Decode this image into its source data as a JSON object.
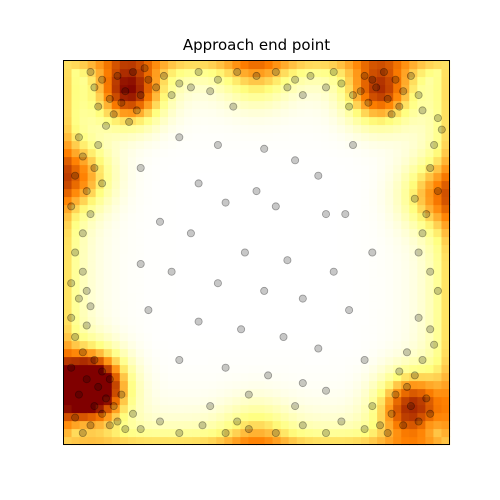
{
  "chart_data": {
    "type": "scatter",
    "title": "Approach end point",
    "xlabel": "",
    "ylabel": "",
    "xlim": [
      0,
      1
    ],
    "ylim": [
      0,
      1
    ],
    "grid": false,
    "axes_ticks": false,
    "colormap": "afmhot",
    "point_color": "#000000",
    "point_alpha": 0.22,
    "series": [
      {
        "values": [
          [
            0.08,
            0.93
          ],
          [
            0.1,
            0.95
          ],
          [
            0.12,
            0.9
          ],
          [
            0.14,
            0.96
          ],
          [
            0.09,
            0.88
          ],
          [
            0.16,
            0.92
          ],
          [
            0.18,
            0.97
          ],
          [
            0.13,
            0.86
          ],
          [
            0.2,
            0.91
          ],
          [
            0.22,
            0.95
          ],
          [
            0.11,
            0.83
          ],
          [
            0.15,
            0.89
          ],
          [
            0.24,
            0.93
          ],
          [
            0.07,
            0.97
          ],
          [
            0.19,
            0.87
          ],
          [
            0.26,
            0.96
          ],
          [
            0.28,
            0.91
          ],
          [
            0.17,
            0.84
          ],
          [
            0.21,
            0.98
          ],
          [
            0.3,
            0.94
          ],
          [
            0.72,
            0.94
          ],
          [
            0.75,
            0.91
          ],
          [
            0.78,
            0.96
          ],
          [
            0.81,
            0.93
          ],
          [
            0.84,
            0.9
          ],
          [
            0.86,
            0.95
          ],
          [
            0.88,
            0.92
          ],
          [
            0.7,
            0.97
          ],
          [
            0.74,
            0.88
          ],
          [
            0.79,
            0.89
          ],
          [
            0.83,
            0.97
          ],
          [
            0.9,
            0.96
          ],
          [
            0.92,
            0.91
          ],
          [
            0.68,
            0.93
          ],
          [
            0.77,
            0.92
          ],
          [
            0.87,
            0.88
          ],
          [
            0.93,
            0.87
          ],
          [
            0.64,
            0.96
          ],
          [
            0.8,
            0.95
          ],
          [
            0.85,
            0.86
          ],
          [
            0.03,
            0.28
          ],
          [
            0.05,
            0.24
          ],
          [
            0.02,
            0.2
          ],
          [
            0.06,
            0.17
          ],
          [
            0.04,
            0.13
          ],
          [
            0.08,
            0.1
          ],
          [
            0.03,
            0.07
          ],
          [
            0.07,
            0.05
          ],
          [
            0.1,
            0.08
          ],
          [
            0.05,
            0.03
          ],
          [
            0.12,
            0.05
          ],
          [
            0.09,
            0.15
          ],
          [
            0.02,
            0.33
          ],
          [
            0.06,
            0.31
          ],
          [
            0.11,
            0.12
          ],
          [
            0.14,
            0.06
          ],
          [
            0.04,
            0.38
          ],
          [
            0.08,
            0.22
          ],
          [
            0.13,
            0.1
          ],
          [
            0.16,
            0.04
          ],
          [
            0.03,
            0.5
          ],
          [
            0.05,
            0.45
          ],
          [
            0.02,
            0.42
          ],
          [
            0.07,
            0.36
          ],
          [
            0.1,
            0.19
          ],
          [
            0.15,
            0.13
          ],
          [
            0.18,
            0.08
          ],
          [
            0.2,
            0.04
          ],
          [
            0.12,
            0.17
          ],
          [
            0.06,
            0.4
          ],
          [
            0.85,
            0.08
          ],
          [
            0.88,
            0.05
          ],
          [
            0.9,
            0.1
          ],
          [
            0.92,
            0.06
          ],
          [
            0.86,
            0.13
          ],
          [
            0.94,
            0.12
          ],
          [
            0.89,
            0.15
          ],
          [
            0.82,
            0.05
          ],
          [
            0.95,
            0.08
          ],
          [
            0.91,
            0.18
          ],
          [
            0.84,
            0.03
          ],
          [
            0.87,
            0.19
          ],
          [
            0.93,
            0.22
          ],
          [
            0.96,
            0.26
          ],
          [
            0.8,
            0.1
          ],
          [
            0.78,
            0.04
          ],
          [
            0.89,
            0.24
          ],
          [
            0.95,
            0.3
          ],
          [
            0.92,
            0.33
          ],
          [
            0.97,
            0.4
          ],
          [
            0.03,
            0.7
          ],
          [
            0.05,
            0.75
          ],
          [
            0.04,
            0.8
          ],
          [
            0.06,
            0.66
          ],
          [
            0.08,
            0.72
          ],
          [
            0.07,
            0.6
          ],
          [
            0.09,
            0.78
          ],
          [
            0.05,
            0.55
          ],
          [
            0.02,
            0.62
          ],
          [
            0.1,
            0.68
          ],
          [
            0.95,
            0.72
          ],
          [
            0.97,
            0.66
          ],
          [
            0.94,
            0.6
          ],
          [
            0.96,
            0.78
          ],
          [
            0.93,
            0.55
          ],
          [
            0.98,
            0.82
          ],
          [
            0.92,
            0.5
          ],
          [
            0.95,
            0.45
          ],
          [
            0.97,
            0.85
          ],
          [
            0.91,
            0.64
          ],
          [
            0.35,
            0.97
          ],
          [
            0.4,
            0.95
          ],
          [
            0.45,
            0.97
          ],
          [
            0.5,
            0.96
          ],
          [
            0.55,
            0.97
          ],
          [
            0.6,
            0.95
          ],
          [
            0.38,
            0.92
          ],
          [
            0.58,
            0.93
          ],
          [
            0.33,
            0.93
          ],
          [
            0.62,
            0.91
          ],
          [
            0.3,
            0.03
          ],
          [
            0.36,
            0.05
          ],
          [
            0.42,
            0.03
          ],
          [
            0.48,
            0.04
          ],
          [
            0.55,
            0.03
          ],
          [
            0.62,
            0.05
          ],
          [
            0.68,
            0.03
          ],
          [
            0.72,
            0.06
          ],
          [
            0.25,
            0.06
          ],
          [
            0.45,
            0.06
          ],
          [
            0.3,
            0.8
          ],
          [
            0.4,
            0.78
          ],
          [
            0.52,
            0.77
          ],
          [
            0.6,
            0.74
          ],
          [
            0.66,
            0.7
          ],
          [
            0.35,
            0.68
          ],
          [
            0.42,
            0.63
          ],
          [
            0.55,
            0.62
          ],
          [
            0.68,
            0.6
          ],
          [
            0.25,
            0.58
          ],
          [
            0.33,
            0.55
          ],
          [
            0.47,
            0.5
          ],
          [
            0.58,
            0.48
          ],
          [
            0.7,
            0.45
          ],
          [
            0.28,
            0.45
          ],
          [
            0.4,
            0.42
          ],
          [
            0.52,
            0.4
          ],
          [
            0.62,
            0.38
          ],
          [
            0.74,
            0.35
          ],
          [
            0.22,
            0.35
          ],
          [
            0.35,
            0.32
          ],
          [
            0.46,
            0.3
          ],
          [
            0.57,
            0.28
          ],
          [
            0.66,
            0.25
          ],
          [
            0.78,
            0.22
          ],
          [
            0.3,
            0.22
          ],
          [
            0.42,
            0.2
          ],
          [
            0.53,
            0.18
          ],
          [
            0.62,
            0.16
          ],
          [
            0.48,
            0.13
          ],
          [
            0.38,
            0.1
          ],
          [
            0.6,
            0.1
          ],
          [
            0.68,
            0.14
          ],
          [
            0.2,
            0.72
          ],
          [
            0.75,
            0.78
          ],
          [
            0.73,
            0.6
          ],
          [
            0.2,
            0.47
          ],
          [
            0.8,
            0.5
          ],
          [
            0.5,
            0.66
          ],
          [
            0.44,
            0.88
          ]
        ]
      }
    ],
    "density_hotspots": [
      {
        "x": 0.07,
        "y": 0.15,
        "strength": 2.6
      },
      {
        "x": 0.17,
        "y": 0.92,
        "strength": 1.6
      },
      {
        "x": 0.82,
        "y": 0.92,
        "strength": 1.4
      },
      {
        "x": 0.9,
        "y": 0.1,
        "strength": 1.5
      },
      {
        "x": 0.04,
        "y": 0.7,
        "strength": 0.9
      },
      {
        "x": 0.96,
        "y": 0.65,
        "strength": 0.8
      },
      {
        "x": 0.5,
        "y": 0.97,
        "strength": 0.6
      },
      {
        "x": 0.5,
        "y": 0.03,
        "strength": 0.5
      }
    ]
  }
}
